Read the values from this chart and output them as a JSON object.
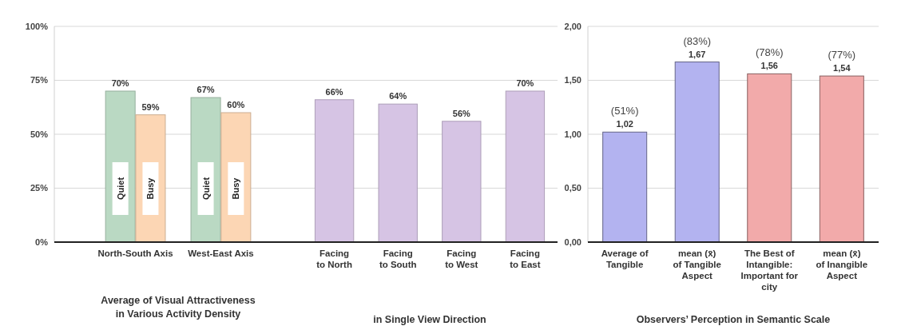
{
  "chart_data": [
    {
      "type": "bar",
      "title": "Average of Visual Attractiveness\nin Various  Activity Density",
      "categories": [
        "North-South Axis",
        "West-East Axis"
      ],
      "series": [
        {
          "name": "Quiet",
          "color": "#bad9c3",
          "values": [
            70,
            67
          ],
          "value_labels": [
            "70%",
            "67%"
          ]
        },
        {
          "name": "Busy",
          "color": "#fcd6b4",
          "values": [
            59,
            60
          ],
          "value_labels": [
            "59%",
            "60%"
          ]
        }
      ],
      "ylim": [
        0,
        100
      ],
      "yticks": [
        {
          "value": 0,
          "label": "0%"
        },
        {
          "value": 25,
          "label": "25%"
        },
        {
          "value": 50,
          "label": "50%"
        },
        {
          "value": 75,
          "label": "75%"
        },
        {
          "value": 100,
          "label": "100%"
        }
      ],
      "grid": "y"
    },
    {
      "type": "bar",
      "title": "in Single View Direction",
      "categories": [
        "Facing\nto North",
        "Facing\nto South",
        "Facing\nto West",
        "Facing\nto East"
      ],
      "values": [
        66,
        64,
        56,
        70
      ],
      "value_labels": [
        "66%",
        "64%",
        "56%",
        "70%"
      ],
      "colors": [
        "#d6c4e4",
        "#d6c4e4",
        "#d6c4e4",
        "#d6c4e4"
      ],
      "ylim": [
        0,
        100
      ],
      "yticks": [
        0,
        25,
        50,
        75,
        100
      ],
      "grid": "y",
      "tick_labels": "x"
    },
    {
      "type": "bar",
      "title": "Observers’ Perception in Semantic Scale",
      "categories": [
        "Average of\nTangible",
        "mean (x̄)\nof Tangible\nAspect",
        "The Best of\nIntangible:\nImportant for\ncity",
        "mean (x̄)\nof Inangible\nAspect"
      ],
      "values": [
        1.02,
        1.67,
        1.56,
        1.54
      ],
      "value_labels": [
        "1,02",
        "1,67",
        "1,56",
        "1,54"
      ],
      "colors": [
        "#b3b3f0",
        "#b3b3f0",
        "#f2aaaa",
        "#f2aaaa"
      ],
      "ylim": [
        0,
        2
      ],
      "yticks": [
        {
          "value": 0,
          "label": "0,00"
        },
        {
          "value": 0.5,
          "label": "0,50"
        },
        {
          "value": 1,
          "label": "1,00"
        },
        {
          "value": 1.5,
          "label": "1,50"
        },
        {
          "value": 2,
          "label": "2,00"
        }
      ],
      "grid": "y",
      "annotations": [
        {
          "text": "(51%)",
          "x": "Average of\nTangible",
          "y": 1.02
        },
        {
          "text": "(83%)",
          "x": "mean (x̄)\nof Tangible\nAspect",
          "y": 1.67
        },
        {
          "text": "(78%)",
          "x": "The Best of\nIntangible:\nImportant for\ncity",
          "y": 1.56
        },
        {
          "text": "(77%)",
          "x": "mean (x̄)\nof Inangible\nAspect",
          "y": 1.54
        }
      ]
    }
  ]
}
